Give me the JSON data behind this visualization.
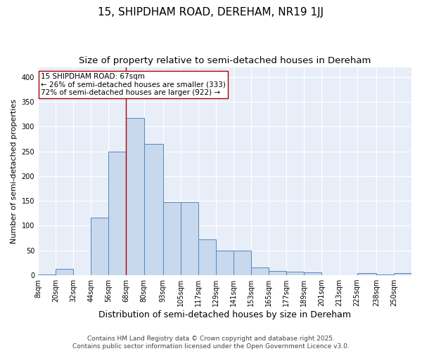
{
  "title": "15, SHIPDHAM ROAD, DEREHAM, NR19 1JJ",
  "subtitle": "Size of property relative to semi-detached houses in Dereham",
  "xlabel": "Distribution of semi-detached houses by size in Dereham",
  "ylabel": "Number of semi-detached properties",
  "bar_color": "#c8d8ed",
  "bar_edge_color": "#5588bb",
  "background_color": "#e8eef8",
  "annotation_line1": "15 SHIPDHAM ROAD: 67sqm",
  "annotation_line2": "← 26% of semi-detached houses are smaller (333)",
  "annotation_line3": "72% of semi-detached houses are larger (922) →",
  "vline_color": "#aa0000",
  "vline_x": 68,
  "categories": [
    "8sqm",
    "20sqm",
    "32sqm",
    "44sqm",
    "56sqm",
    "68sqm",
    "80sqm",
    "93sqm",
    "105sqm",
    "117sqm",
    "129sqm",
    "141sqm",
    "153sqm",
    "165sqm",
    "177sqm",
    "189sqm",
    "201sqm",
    "213sqm",
    "225sqm",
    "238sqm",
    "250sqm"
  ],
  "bin_edges": [
    8,
    20,
    32,
    44,
    56,
    68,
    80,
    93,
    105,
    117,
    129,
    141,
    153,
    165,
    177,
    189,
    201,
    213,
    225,
    238,
    250
  ],
  "values": [
    2,
    13,
    0,
    116,
    250,
    318,
    265,
    147,
    147,
    73,
    50,
    50,
    15,
    8,
    7,
    6,
    0,
    0,
    4,
    2,
    5
  ],
  "ylim": [
    0,
    420
  ],
  "yticks": [
    0,
    50,
    100,
    150,
    200,
    250,
    300,
    350,
    400
  ],
  "footer_line1": "Contains HM Land Registry data © Crown copyright and database right 2025.",
  "footer_line2": "Contains public sector information licensed under the Open Government Licence v3.0.",
  "title_fontsize": 11,
  "subtitle_fontsize": 9.5,
  "xlabel_fontsize": 9,
  "ylabel_fontsize": 8,
  "tick_fontsize": 7,
  "footer_fontsize": 6.5,
  "annotation_fontsize": 7.5
}
